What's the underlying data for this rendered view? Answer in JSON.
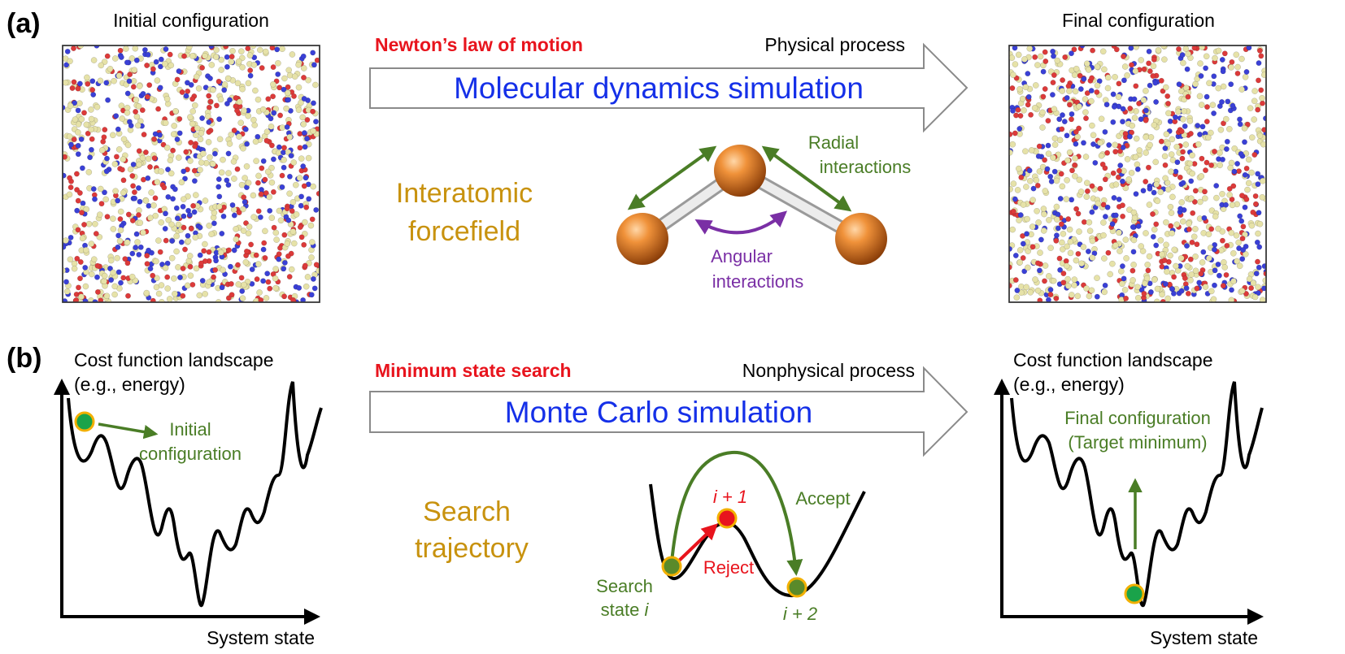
{
  "panel_a": {
    "label": "(a)",
    "initial_title": "Initial configuration",
    "final_title": "Final configuration",
    "law": "Newton’s law of motion",
    "process": "Physical process",
    "simulation": "Molecular dynamics simulation",
    "forcefield_line1": "Interatomic",
    "forcefield_line2": "forcefield",
    "radial_line1": "Radial",
    "radial_line2": "interactions",
    "angular_line1": "Angular",
    "angular_line2": "interactions"
  },
  "panel_b": {
    "label": "(b)",
    "landscape_title_left_1": "Cost function landscape",
    "landscape_title_left_2": "(e.g., energy)",
    "landscape_title_right_1": "Cost function landscape",
    "landscape_title_right_2": "(e.g., energy)",
    "initial_line1": "Initial",
    "initial_line2": "configuration",
    "final_line1": "Final configuration",
    "final_line2": "(Target minimum)",
    "xaxis_left": "System state",
    "xaxis_right": "System state",
    "law": "Minimum state search",
    "process": "Nonphysical process",
    "simulation": "Monte Carlo simulation",
    "trajectory_line1": "Search",
    "trajectory_line2": "trajectory",
    "state_i_1": "Search",
    "state_i_2": "state ",
    "state_i_3": "i",
    "i_plus_1": "i + 1",
    "i_plus_2": "i + 2",
    "accept": "Accept",
    "reject": "Reject"
  },
  "colors": {
    "red": "#e8141d",
    "blue": "#1530e8",
    "green": "#4a7d26",
    "gold": "#c8920e",
    "purple": "#7a2fa5",
    "atom_orange": "#e8822a",
    "node_green": "#1aa34a",
    "node_red": "#e8141d",
    "node_ring": "#f2b000",
    "particle_red": "#dc3a3a",
    "particle_blue": "#3a40d6",
    "particle_cream": "#e6e2a8"
  }
}
